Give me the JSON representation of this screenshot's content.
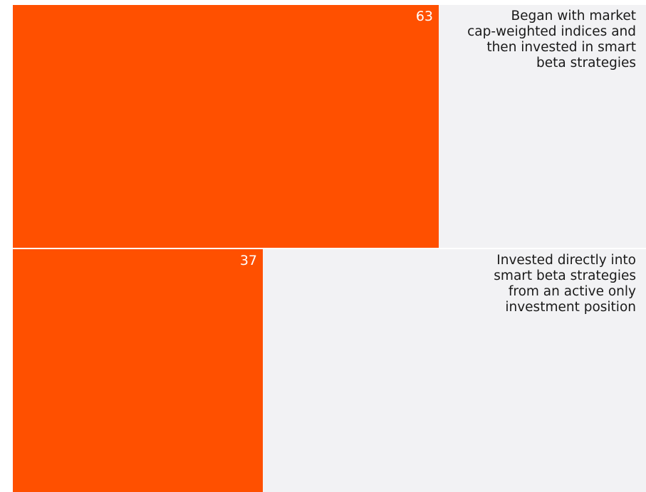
{
  "chart_data": {
    "type": "bar",
    "orientation": "horizontal",
    "categories": [
      "Began with market cap-weighted indices and then invested in smart beta strategies",
      "Invested directly into smart beta strategies from an active only investment position"
    ],
    "label_lines": [
      [
        "Began with market",
        "cap-weighted indices and",
        "then invested in smart",
        "beta strategies"
      ],
      [
        "Invested directly into",
        "smart beta strategies",
        "from an active only",
        "investment position"
      ]
    ],
    "values": [
      63,
      37
    ],
    "xlim": [
      0,
      100
    ],
    "grid": false,
    "legend": "none",
    "colors": {
      "bar": "#FF5000",
      "track": "#F2F2F4",
      "value_text": "#FFFFFF",
      "label_text": "#1A1A1A"
    }
  }
}
